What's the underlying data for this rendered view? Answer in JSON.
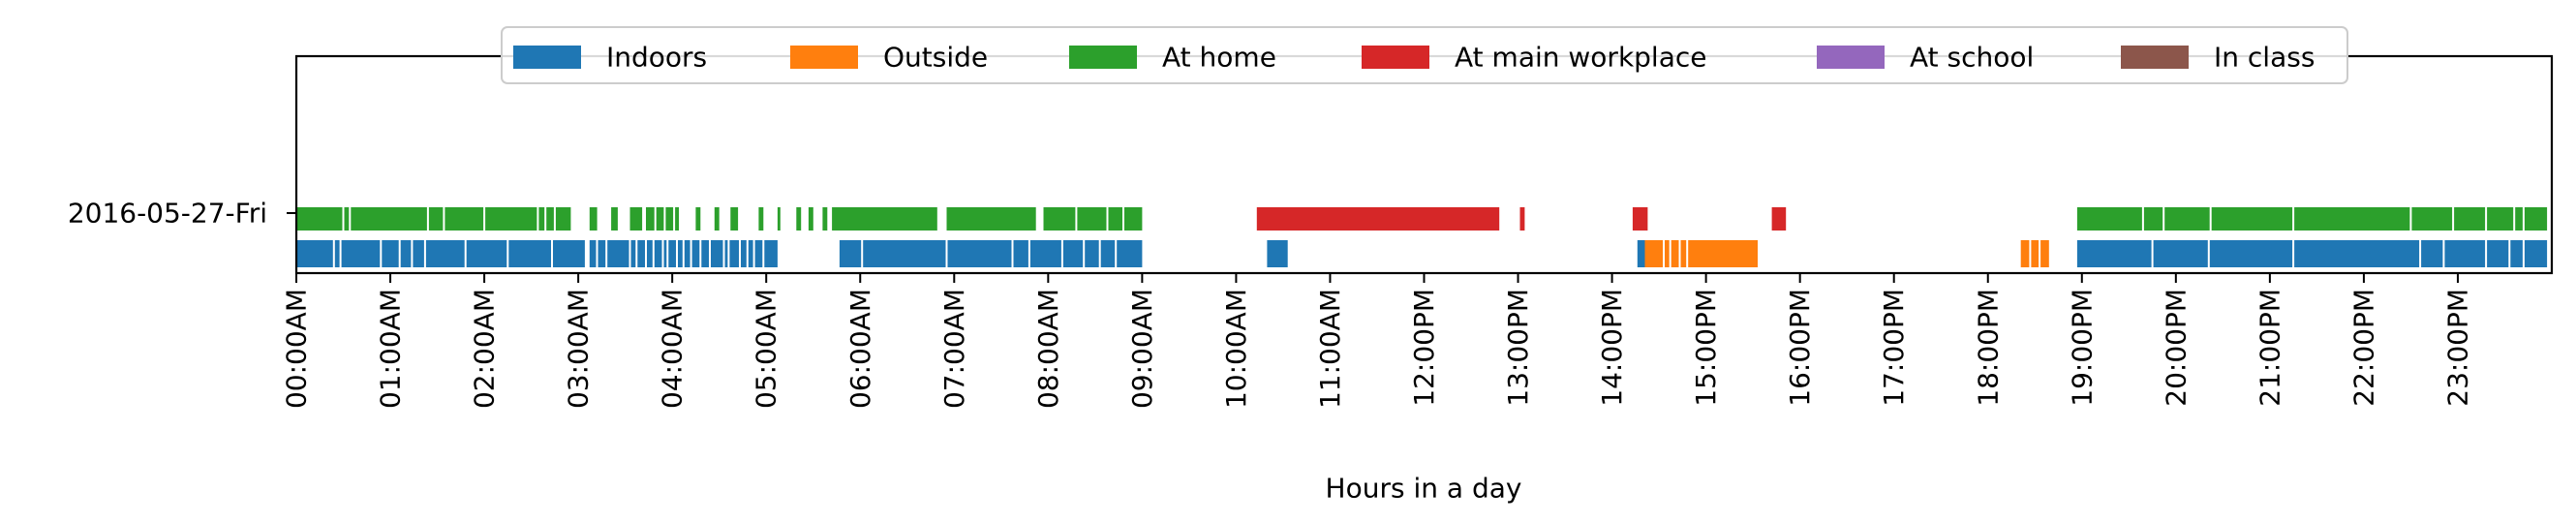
{
  "chart_data": {
    "type": "timeline",
    "xlabel": "Hours in a day",
    "ylabel": "",
    "xlim": [
      0,
      24
    ],
    "x_ticks": [
      "00:00AM",
      "01:00AM",
      "02:00AM",
      "03:00AM",
      "04:00AM",
      "05:00AM",
      "06:00AM",
      "07:00AM",
      "08:00AM",
      "09:00AM",
      "10:00AM",
      "11:00AM",
      "12:00PM",
      "13:00PM",
      "14:00PM",
      "15:00PM",
      "16:00PM",
      "17:00PM",
      "18:00PM",
      "19:00PM",
      "20:00PM",
      "21:00PM",
      "22:00PM",
      "23:00PM"
    ],
    "day_label": "2016-05-27-Fri",
    "legend_position": "top-center",
    "legend": [
      {
        "name": "Indoors",
        "color": "#1f77b4"
      },
      {
        "name": "Outside",
        "color": "#ff7f0e"
      },
      {
        "name": "At home",
        "color": "#2ca02c"
      },
      {
        "name": "At main workplace",
        "color": "#d62728"
      },
      {
        "name": "At school",
        "color": "#9467bd"
      },
      {
        "name": "In class",
        "color": "#8c564b"
      }
    ],
    "series": [
      {
        "name": "Indoors",
        "row": "lower",
        "intervals": [
          [
            0.0,
            3.07
          ],
          [
            3.12,
            5.12
          ],
          [
            5.78,
            9.0
          ],
          [
            10.33,
            10.55
          ],
          [
            14.27,
            14.35
          ],
          [
            18.95,
            23.95
          ]
        ],
        "gaps": [
          0.4,
          0.47,
          0.9,
          1.1,
          1.23,
          1.37,
          1.8,
          2.25,
          2.72,
          3.2,
          3.3,
          3.55,
          3.62,
          3.72,
          3.8,
          3.9,
          3.95,
          4.05,
          4.12,
          4.2,
          4.3,
          4.4,
          4.55,
          4.6,
          4.72,
          4.8,
          4.87,
          4.97,
          6.02,
          6.92,
          7.62,
          7.8,
          8.15,
          8.38,
          8.55,
          8.72,
          19.75,
          20.35,
          21.25,
          22.6,
          22.85,
          23.3,
          23.55,
          23.7
        ]
      },
      {
        "name": "Outside",
        "row": "lower",
        "intervals": [
          [
            14.35,
            15.55
          ],
          [
            18.35,
            18.65
          ]
        ],
        "gaps": [
          14.55,
          14.62,
          14.72,
          14.8,
          18.45,
          18.55
        ]
      },
      {
        "name": "At home",
        "row": "upper",
        "intervals": [
          [
            0.0,
            2.92
          ],
          [
            3.12,
            3.2
          ],
          [
            3.35,
            3.42
          ],
          [
            3.55,
            3.68
          ],
          [
            3.72,
            4.07
          ],
          [
            4.25,
            4.3
          ],
          [
            4.45,
            4.5
          ],
          [
            4.62,
            4.7
          ],
          [
            4.92,
            4.97
          ],
          [
            5.12,
            5.15
          ],
          [
            5.32,
            5.37
          ],
          [
            5.45,
            5.5
          ],
          [
            5.6,
            5.65
          ],
          [
            5.7,
            6.82
          ],
          [
            6.92,
            7.87
          ],
          [
            7.95,
            9.0
          ],
          [
            18.95,
            23.95
          ]
        ],
        "gaps": [
          0.5,
          0.57,
          1.4,
          1.57,
          2.0,
          2.57,
          2.65,
          2.75,
          3.82,
          3.92,
          4.02,
          8.3,
          8.63,
          8.8,
          19.65,
          19.87,
          20.37,
          21.25,
          22.5,
          22.95,
          23.3,
          23.6,
          23.7
        ]
      },
      {
        "name": "At main workplace",
        "row": "upper",
        "intervals": [
          [
            10.22,
            12.8
          ],
          [
            13.02,
            13.07
          ],
          [
            14.22,
            14.38
          ],
          [
            15.7,
            15.85
          ]
        ],
        "gaps": []
      },
      {
        "name": "At school",
        "row": "upper",
        "intervals": [],
        "gaps": []
      },
      {
        "name": "In class",
        "row": "upper",
        "intervals": [],
        "gaps": []
      }
    ]
  }
}
